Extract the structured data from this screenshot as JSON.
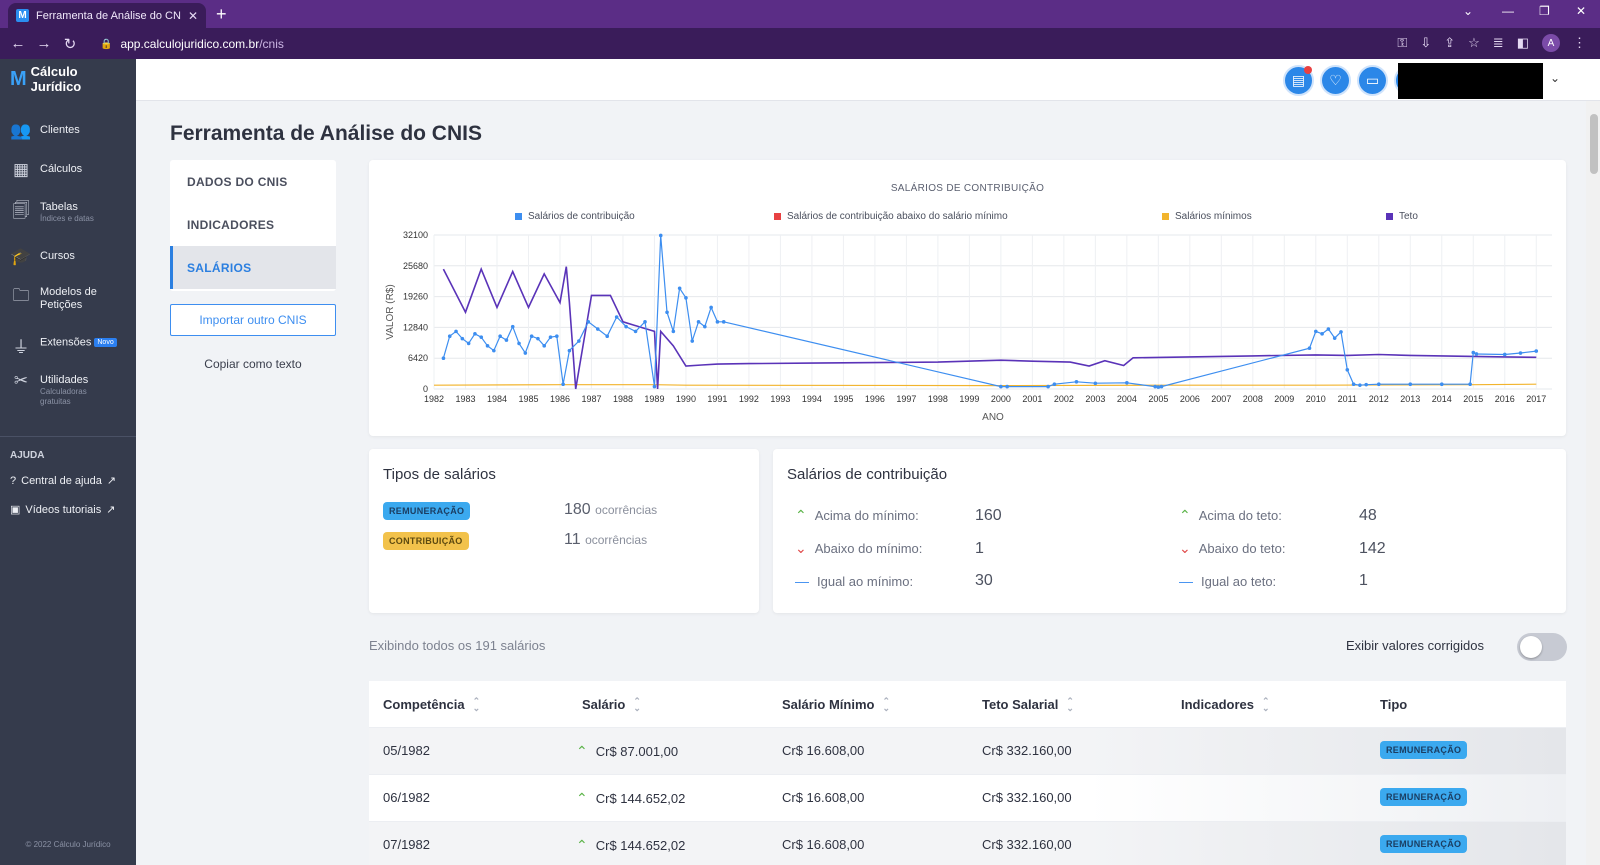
{
  "browser": {
    "tab_title": "Ferramenta de Análise do CNIS",
    "tab_favicon": "calculo-juridico-favicon",
    "url_host": "app.calculojuridico.com.br",
    "url_path": "/cnis",
    "avatar_letter": "A"
  },
  "sidebar": {
    "logo_text": "Cálculo Jurídico",
    "items": [
      {
        "label": "Clientes",
        "sub": "",
        "icon": "clients-icon"
      },
      {
        "label": "Cálculos",
        "sub": "",
        "icon": "calculator-icon"
      },
      {
        "label": "Tabelas",
        "sub": "Índices e datas",
        "icon": "tables-icon"
      },
      {
        "label": "Cursos",
        "sub": "",
        "icon": "courses-icon"
      },
      {
        "label": "Modelos de Petições",
        "sub": "",
        "icon": "folder-icon"
      },
      {
        "label": "Extensões",
        "sub": "",
        "icon": "plug-icon",
        "badge": "Novo"
      },
      {
        "label": "Utilidades",
        "sub": "Calculadoras gratuitas",
        "icon": "tools-icon"
      }
    ],
    "help_title": "AJUDA",
    "help_items": [
      {
        "label": "Central de ajuda"
      },
      {
        "label": "Vídeos tutoriais"
      }
    ],
    "copyright": "© 2022 Cálculo Jurídico"
  },
  "page": {
    "title": "Ferramenta de Análise do CNIS",
    "menu": [
      {
        "label": "DADOS DO CNIS",
        "active": false
      },
      {
        "label": "INDICADORES",
        "active": false
      },
      {
        "label": "SALÁRIOS",
        "active": true
      }
    ],
    "import_button": "Importar outro CNIS",
    "copy_text": "Copiar como texto"
  },
  "chart_data": {
    "type": "line",
    "title": "SALÁRIOS DE CONTRIBUIÇÃO",
    "xlabel": "ANO",
    "ylabel": "VALOR (R$)",
    "ylim": [
      0,
      32100
    ],
    "yticks": [
      0,
      6420,
      12840,
      19260,
      25680,
      32100
    ],
    "xticks": [
      "1982",
      "1983",
      "1984",
      "1985",
      "1986",
      "1987",
      "1988",
      "1989",
      "1990",
      "1991",
      "1992",
      "1993",
      "1994",
      "1995",
      "1996",
      "1997",
      "1998",
      "1999",
      "2000",
      "2001",
      "2002",
      "2003",
      "2004",
      "2005",
      "2006",
      "2007",
      "2008",
      "2009",
      "2010",
      "2011",
      "2012",
      "2013",
      "2014",
      "2015",
      "2016",
      "2017"
    ],
    "grid": true,
    "legend_position": "top",
    "series": [
      {
        "name": "Salários de contribuição",
        "color": "#3d8ef0",
        "markers": true,
        "x": [
          1982.3,
          1982.5,
          1982.7,
          1982.9,
          1983.1,
          1983.3,
          1983.5,
          1983.7,
          1983.9,
          1984.1,
          1984.3,
          1984.5,
          1984.7,
          1984.9,
          1985.1,
          1985.3,
          1985.5,
          1985.7,
          1985.9,
          1986.1,
          1986.3,
          1986.6,
          1986.9,
          1987.2,
          1987.5,
          1987.8,
          1988.1,
          1988.4,
          1988.7,
          1989.0,
          1989.2,
          1989.4,
          1989.6,
          1989.8,
          1990.0,
          1990.2,
          1990.4,
          1990.6,
          1990.8,
          1991.0,
          1991.2,
          2000.0,
          2000.2,
          2001.5,
          2001.7,
          2002.4,
          2003.0,
          2004.0,
          2004.9,
          2005.0,
          2005.1,
          2009.8,
          2010.0,
          2010.2,
          2010.4,
          2010.6,
          2010.8,
          2011.0,
          2011.2,
          2011.4,
          2011.6,
          2012.0,
          2013.0,
          2014.0,
          2014.9,
          2015.0,
          2015.1,
          2016.0,
          2016.5,
          2017.0
        ],
        "y": [
          6420,
          11000,
          12000,
          10500,
          9500,
          11500,
          10800,
          9000,
          8000,
          11000,
          10200,
          13000,
          9500,
          7500,
          11000,
          10500,
          9000,
          10800,
          11000,
          1000,
          8000,
          10000,
          14000,
          12500,
          11000,
          15000,
          13000,
          12000,
          14000,
          500,
          32000,
          16000,
          12000,
          21000,
          19000,
          10000,
          14000,
          13000,
          17000,
          14000,
          14000,
          500,
          500,
          500,
          1000,
          1500,
          1200,
          1300,
          500,
          400,
          500,
          8500,
          12000,
          11500,
          12500,
          10600,
          11900,
          4000,
          1000,
          800,
          900,
          1000,
          1000,
          1000,
          1000,
          7600,
          7300,
          7200,
          7500,
          7900
        ]
      },
      {
        "name": "Salários de contribuição abaixo do salário mínimo",
        "color": "#e84142",
        "x": [],
        "y": []
      },
      {
        "name": "Salários mínimos",
        "color": "#f2b42d",
        "x": [
          1982,
          1986,
          1989,
          1990,
          2000,
          2005,
          2010,
          2015,
          2017
        ],
        "y": [
          800,
          900,
          900,
          800,
          700,
          800,
          800,
          900,
          1000
        ]
      },
      {
        "name": "Teto",
        "color": "#5a33b8",
        "x": [
          1982.3,
          1983.0,
          1983.5,
          1984.0,
          1984.5,
          1985.0,
          1985.5,
          1986.0,
          1986.2,
          1986.3,
          1986.5,
          1987.0,
          1987.6,
          1988.0,
          1988.5,
          1989.0,
          1989.1,
          1989.2,
          1989.6,
          1990.0,
          1990.5,
          1991.0,
          1992,
          1994,
          1996,
          1998,
          2000,
          2001,
          2002.2,
          2002.8,
          2003.3,
          2003.9,
          2004.2,
          2006,
          2008,
          2010,
          2011,
          2012,
          2013,
          2014,
          2015,
          2016,
          2017
        ],
        "y": [
          25000,
          16000,
          25000,
          17000,
          24500,
          17000,
          24000,
          18000,
          25500,
          18000,
          0,
          19500,
          19500,
          14000,
          13000,
          12000,
          0,
          12000,
          9000,
          4800,
          5000,
          5200,
          5300,
          5400,
          5500,
          5600,
          6000,
          5800,
          5600,
          4800,
          5900,
          4900,
          6500,
          6700,
          6900,
          7100,
          7000,
          7200,
          7000,
          6900,
          6800,
          6700,
          6600
        ]
      }
    ]
  },
  "tipos": {
    "title": "Tipos de salários",
    "rows": [
      {
        "badge": "REMUNERAÇÃO",
        "count": "180",
        "unit": "ocorrências"
      },
      {
        "badge": "CONTRIBUIÇÃO",
        "count": "11",
        "unit": "ocorrências"
      }
    ]
  },
  "contribuicao": {
    "title": "Salários de contribuição",
    "left": [
      {
        "label": "Acima do mínimo:",
        "value": "160",
        "kind": "up"
      },
      {
        "label": "Abaixo do mínimo:",
        "value": "1",
        "kind": "down"
      },
      {
        "label": "Igual ao mínimo:",
        "value": "30",
        "kind": "eq"
      }
    ],
    "right": [
      {
        "label": "Acima do teto:",
        "value": "48",
        "kind": "up"
      },
      {
        "label": "Abaixo do teto:",
        "value": "142",
        "kind": "down"
      },
      {
        "label": "Igual ao teto:",
        "value": "1",
        "kind": "eq"
      }
    ]
  },
  "list": {
    "summary": "Exibindo todos os 191 salários",
    "toggle_label": "Exibir valores corrigidos",
    "toggle_on": false,
    "columns": [
      "Competência",
      "Salário",
      "Salário Mínimo",
      "Teto Salarial",
      "Indicadores",
      "Tipo"
    ],
    "rows": [
      {
        "competencia": "05/1982",
        "salario": "Cr$ 87.001,00",
        "minimo": "Cr$ 16.608,00",
        "teto": "Cr$ 332.160,00",
        "tipo": "REMUNERAÇÃO"
      },
      {
        "competencia": "06/1982",
        "salario": "Cr$ 144.652,02",
        "minimo": "Cr$ 16.608,00",
        "teto": "Cr$ 332.160,00",
        "tipo": "REMUNERAÇÃO"
      },
      {
        "competencia": "07/1982",
        "salario": "Cr$ 144.652,02",
        "minimo": "Cr$ 16.608,00",
        "teto": "Cr$ 332.160,00",
        "tipo": "REMUNERAÇÃO"
      }
    ]
  }
}
